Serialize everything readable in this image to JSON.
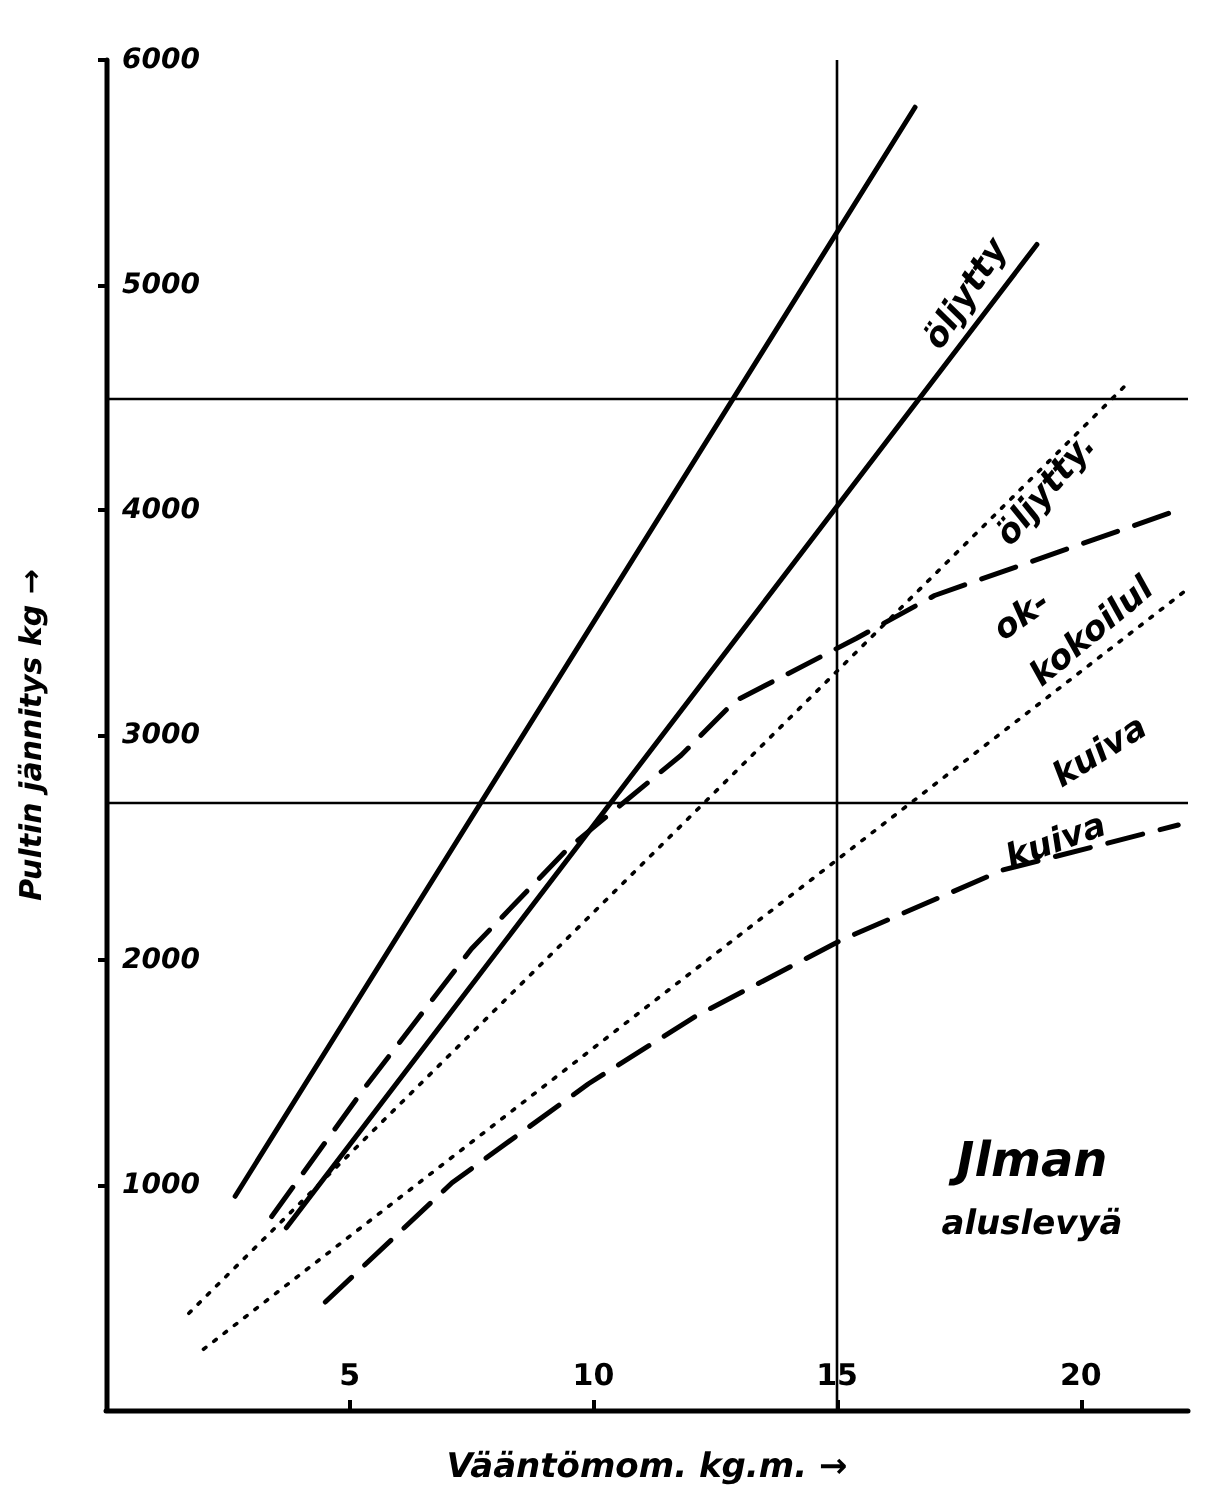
{
  "chart_data": {
    "type": "line",
    "xlabel": "Vääntömom. kg.m. →",
    "ylabel": "Pultin jännitys kg →",
    "xlim": [
      0,
      22.2
    ],
    "xticks": [
      5,
      10,
      15,
      20
    ],
    "ylim": [
      0,
      6000
    ],
    "yticks": [
      1000,
      2000,
      3000,
      4000,
      5000,
      6000
    ],
    "grid": false,
    "marker": "none",
    "series": [
      {
        "color": "#000000",
        "line_style": "solid",
        "x": [
          2.65,
          16.6
        ],
        "values": [
          950,
          5790
        ]
      },
      {
        "color": "#000000",
        "line_style": "solid",
        "x": [
          3.7,
          19.1
        ],
        "values": [
          810,
          5180
        ]
      },
      {
        "color": "#000000",
        "line_style": "dashed",
        "x": [
          3.4,
          5.3,
          7.5,
          9.5,
          11.8,
          12.9,
          15.4,
          17,
          22
        ],
        "values": [
          860,
          1430,
          2050,
          2500,
          2910,
          3150,
          3430,
          3620,
          4000
        ]
      },
      {
        "color": "#000000",
        "line_style": "dotted",
        "x": [
          1.7,
          20.9
        ],
        "values": [
          430,
          4550
        ]
      },
      {
        "color": "#000000",
        "line_style": "dotted",
        "x": [
          2.0,
          22.2
        ],
        "values": [
          270,
          3650
        ]
      },
      {
        "color": "#000000",
        "line_style": "dashed",
        "x": [
          4.5,
          7.1,
          9.9,
          12.1,
          15.1,
          18.4,
          22
        ],
        "values": [
          480,
          1010,
          1450,
          1750,
          2090,
          2400,
          2600
        ]
      }
    ],
    "ref_lines": [
      {
        "axis": "y",
        "value": 4500,
        "color": "#000000"
      },
      {
        "axis": "y",
        "value": 2700,
        "color": "#000000"
      },
      {
        "axis": "x",
        "value": 15,
        "color": "#000000"
      }
    ],
    "annotations": [
      "öljytty",
      "öljytty.",
      "ok-",
      "kokoilul",
      "kuiva",
      "kuiva",
      "Jlman",
      "aluslevyä"
    ]
  }
}
